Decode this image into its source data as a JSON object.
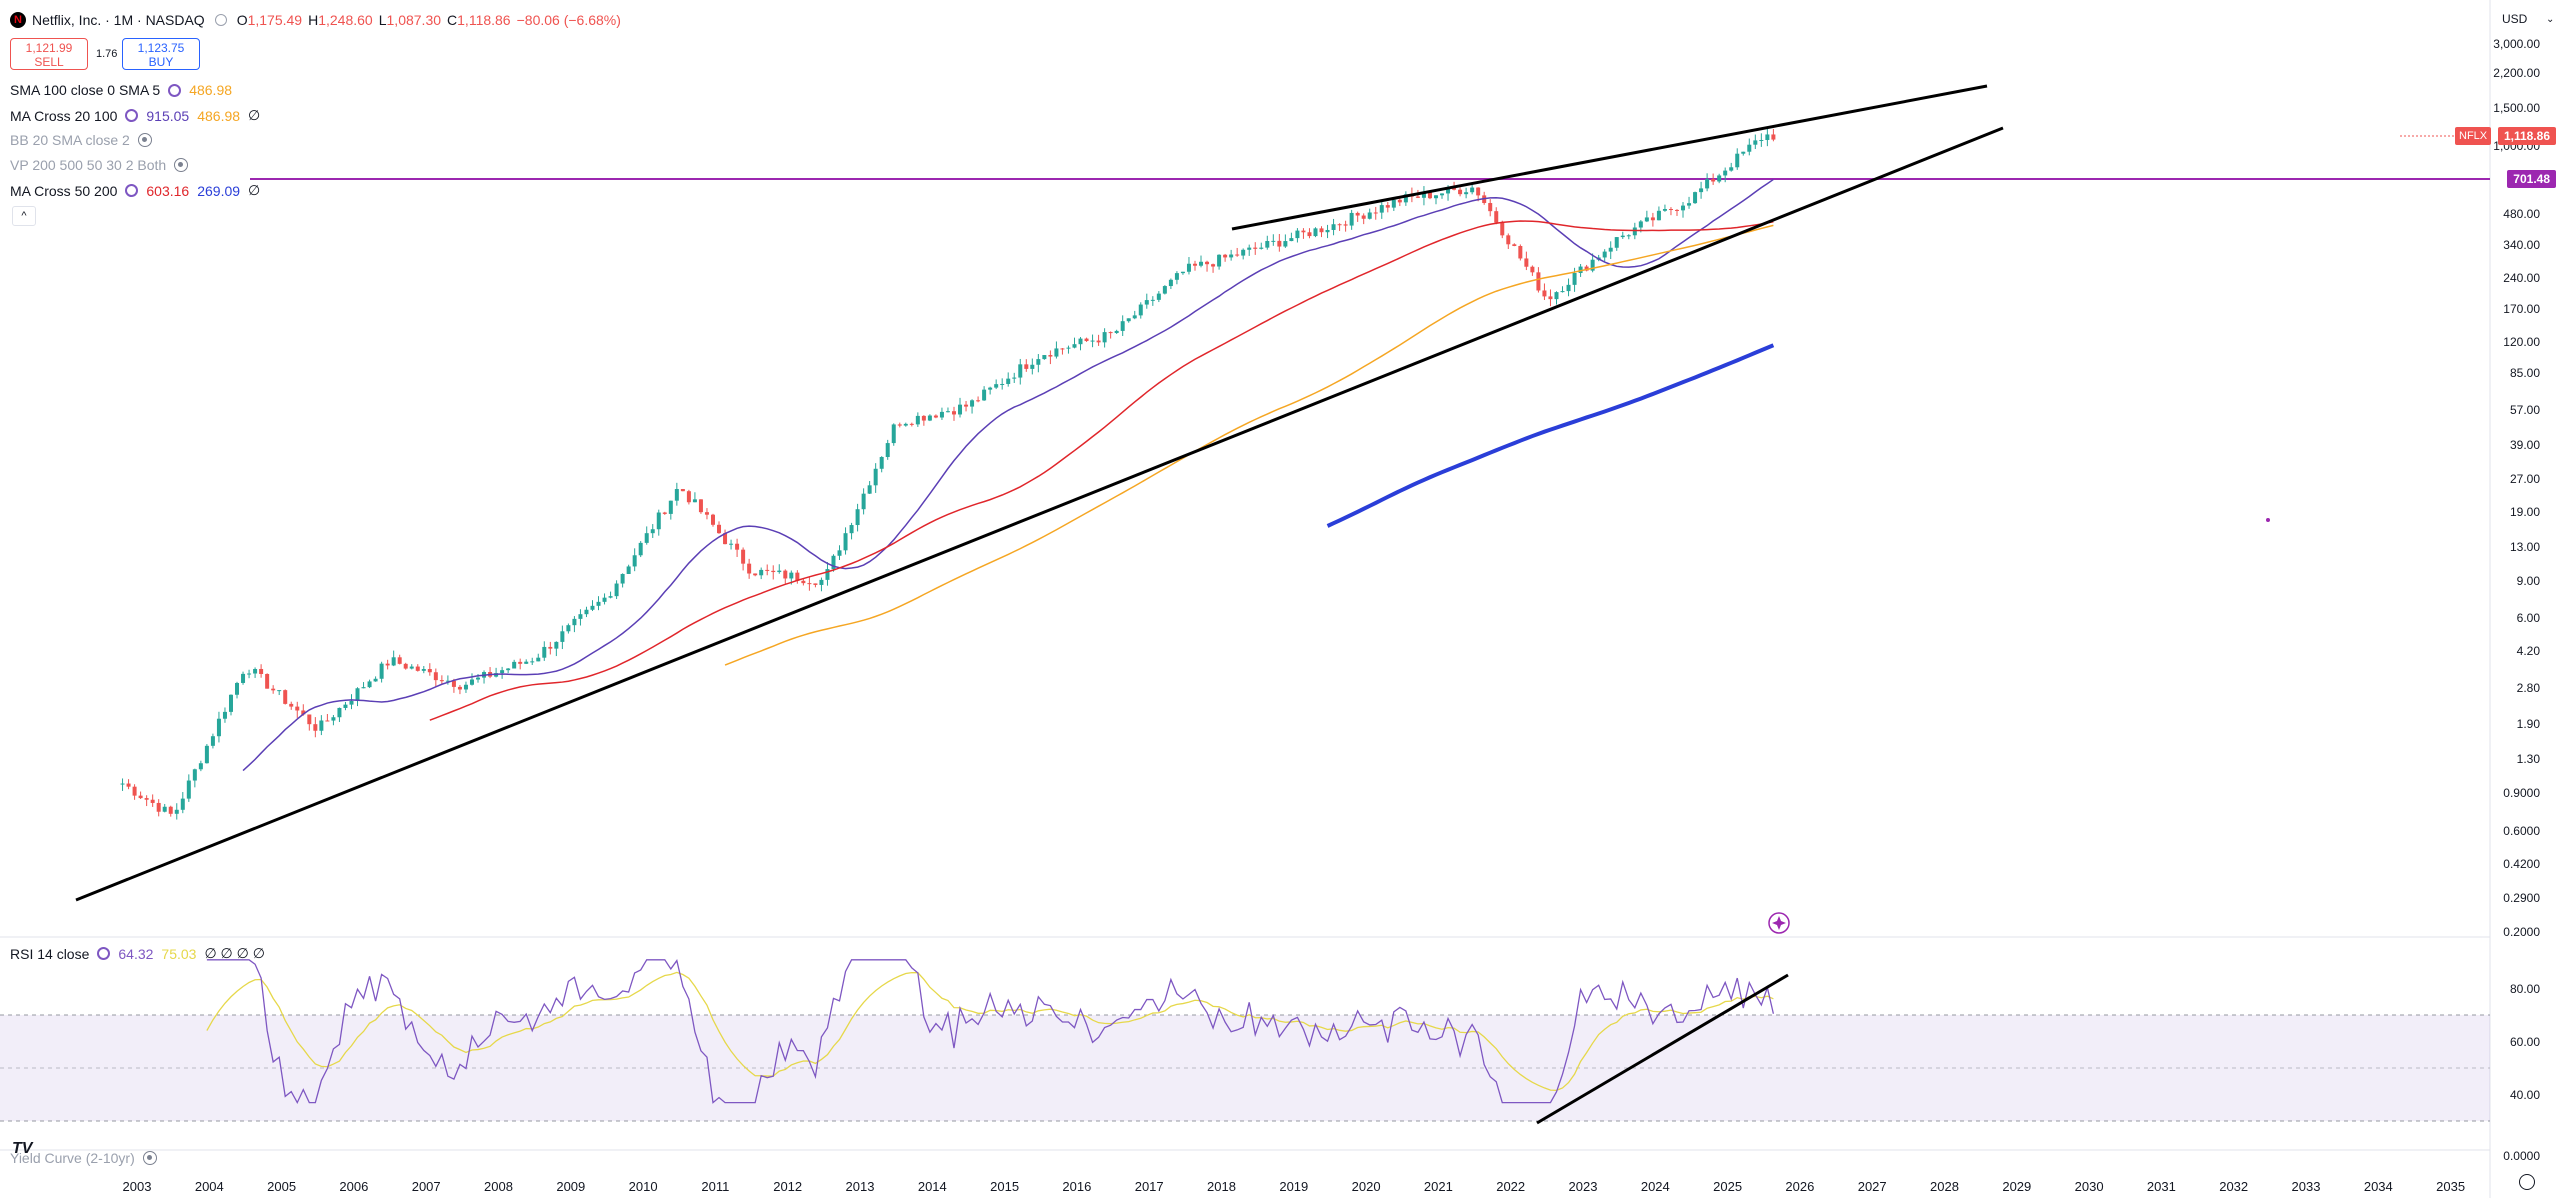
{
  "header": {
    "symbol_title": "Netflix, Inc. · 1M · NASDAQ",
    "open_label": "O",
    "open": "1,175.49",
    "high_label": "H",
    "high": "1,248.60",
    "low_label": "L",
    "low": "1,087.30",
    "close_label": "C",
    "close": "1,118.86",
    "change": "−80.06 (−6.68%)",
    "currency": "USD"
  },
  "trade": {
    "sell_price": "1,121.99",
    "sell_label": "SELL",
    "spread": "1.76",
    "buy_price": "1,123.75",
    "buy_label": "BUY"
  },
  "indicators": {
    "sma": {
      "name": "SMA 100 close 0 SMA 5",
      "value": "486.98"
    },
    "ma_cross_20_100": {
      "name": "MA Cross 20 100",
      "v1": "915.05",
      "v2": "486.98",
      "v3": "∅"
    },
    "bb": {
      "name": "BB 20 SMA close 2"
    },
    "vp": {
      "name": "VP 200 500 50 30 2 Both"
    },
    "ma_cross_50_200": {
      "name": "MA Cross 50 200",
      "v1": "603.16",
      "v2": "269.09",
      "v3": "∅"
    }
  },
  "price_axis": {
    "ticks": [
      "3,000.00",
      "2,200.00",
      "1,500.00",
      "1,000.00",
      "480.00",
      "340.00",
      "240.00",
      "170.00",
      "120.00",
      "85.00",
      "57.00",
      "39.00",
      "27.00",
      "19.00",
      "13.00",
      "9.00",
      "6.00",
      "4.20",
      "2.80",
      "1.90",
      "1.30",
      "0.9000",
      "0.6000",
      "0.4200",
      "0.2900",
      "0.2000"
    ],
    "nflx_label": "NFLX",
    "last_price": "1,118.86",
    "horizontal_line_price": "701.48"
  },
  "rsi": {
    "name": "RSI 14 close",
    "value": "64.32",
    "smoothing": "75.03",
    "extra": "∅ ∅ ∅ ∅",
    "ticks": [
      "80.00",
      "60.00",
      "40.00",
      "0.0000"
    ]
  },
  "yield_curve": {
    "name": "Yield Curve (2-10yr)"
  },
  "time_axis": {
    "years": [
      "2003",
      "2004",
      "2005",
      "2006",
      "2007",
      "2008",
      "2009",
      "2010",
      "2011",
      "2012",
      "2013",
      "2014",
      "2015",
      "2016",
      "2017",
      "2018",
      "2019",
      "2020",
      "2021",
      "2022",
      "2023",
      "2024",
      "2025",
      "2026",
      "2027",
      "2028",
      "2029",
      "2030",
      "2031",
      "2032",
      "2033",
      "2034",
      "2035"
    ]
  },
  "colors": {
    "up": "#26a69a",
    "down": "#ef5350",
    "ma20": "#5b3fb5",
    "ma100": "#f5a623",
    "ma_red": "#e0262b",
    "ma_blue": "#2a3ed8",
    "hline": "#9c27b0",
    "rsi": "#7e57c2"
  },
  "chart_data": {
    "type": "line",
    "title": "Netflix, Inc. · 1M · NASDAQ",
    "y_scale": "log",
    "x": [
      "2003",
      "2004",
      "2005",
      "2006",
      "2007",
      "2008",
      "2009",
      "2010",
      "2011",
      "2012",
      "2013",
      "2014",
      "2015",
      "2016",
      "2017",
      "2018",
      "2019",
      "2020",
      "2021",
      "2022",
      "2023",
      "2024",
      "2025"
    ],
    "series": [
      {
        "name": "NFLX",
        "values": [
          0.7,
          3.6,
          1.8,
          3.8,
          2.9,
          3.9,
          7.6,
          25,
          10,
          9,
          50,
          60,
          105,
          130,
          260,
          330,
          420,
          560,
          640,
          190,
          370,
          570,
          1119
        ]
      }
    ],
    "ylim": [
      0.2,
      3000
    ],
    "horizontal_line": 701.48,
    "rsi": {
      "name": "RSI 14 close",
      "value": 64.32,
      "smoothing": 75.03,
      "ylim": [
        0,
        100
      ]
    }
  }
}
